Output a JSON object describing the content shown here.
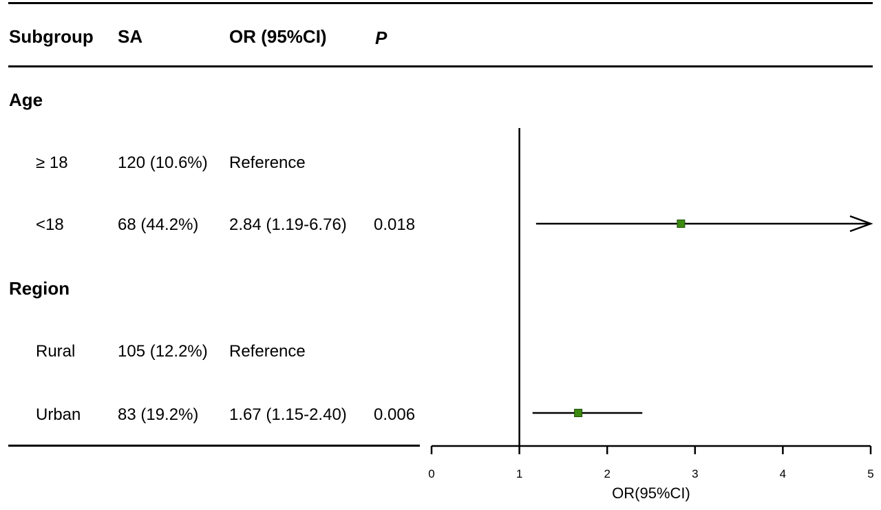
{
  "table": {
    "headers": {
      "subgroup": "Subgroup",
      "sa": "SA",
      "or": "OR (95%CI)",
      "p": "P"
    },
    "groups": [
      {
        "label": "Age",
        "rows": [
          {
            "label": "≥ 18",
            "sa": "120 (10.6%)",
            "or_text": "Reference",
            "p": ""
          },
          {
            "label": "<18",
            "sa": "68 (44.2%)",
            "or_text": "2.84 (1.19-6.76)",
            "p": "0.018"
          }
        ]
      },
      {
        "label": "Region",
        "rows": [
          {
            "label": "Rural",
            "sa": "105 (12.2%)",
            "or_text": "Reference",
            "p": ""
          },
          {
            "label": "Urban",
            "sa": "83 (19.2%)",
            "or_text": "1.67 (1.15-2.40)",
            "p": "0.006"
          }
        ]
      }
    ]
  },
  "chart_data": {
    "type": "forest",
    "xlabel": "OR(95%CI)",
    "xlim": [
      0,
      5
    ],
    "xticks": [
      0,
      1,
      2,
      3,
      4,
      5
    ],
    "reference_line": 1,
    "points": [
      {
        "row": "<18",
        "or": 2.84,
        "lower": 1.19,
        "upper": 6.76,
        "truncated_upper": true
      },
      {
        "row": "Urban",
        "or": 1.67,
        "lower": 1.15,
        "upper": 2.4,
        "truncated_upper": false
      }
    ],
    "marker_color": "#3c8a12",
    "marker_stroke": "#1f4f07"
  }
}
